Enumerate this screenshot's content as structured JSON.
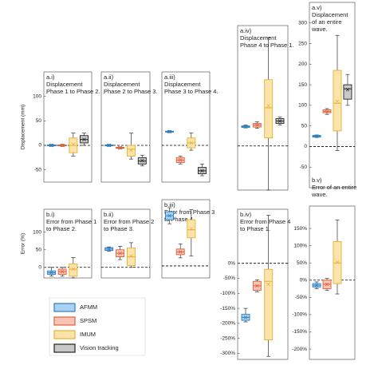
{
  "chart_data": {
    "type": "box",
    "series": [
      {
        "name": "AFMM",
        "color": "#a9d1f2",
        "stroke": "#2a7fc4"
      },
      {
        "name": "SPSM",
        "color": "#f7c4b6",
        "stroke": "#e0603c"
      },
      {
        "name": "IMUM",
        "color": "#fbe4ac",
        "stroke": "#e8b030"
      },
      {
        "name": "Vision tracking",
        "color": "#c8c8c8",
        "stroke": "#222222"
      }
    ],
    "panels": [
      {
        "title": [
          "a.i)",
          "Displacement",
          "Phase 1 to Phase 2."
        ],
        "ylabel": "Displacement (mm)",
        "ylim": [
          -75,
          150
        ],
        "yticks": [
          -50,
          0,
          50,
          100
        ],
        "boxes": [
          {
            "low": -2,
            "q1": -1,
            "median": 0,
            "q3": 1,
            "high": 2,
            "mean": 0
          },
          {
            "low": -2,
            "q1": -1,
            "median": 0,
            "q3": 1,
            "high": 2,
            "mean": 0
          },
          {
            "low": -22,
            "q1": -15,
            "median": 0,
            "q3": 15,
            "high": 25,
            "mean": 2
          },
          {
            "low": 0,
            "q1": 5,
            "median": 12,
            "q3": 20,
            "high": 25,
            "mean": 12
          }
        ]
      },
      {
        "title": [
          "a.ii)",
          "Displacement",
          "Phase 2 to Phase 3."
        ],
        "ylim": [
          -75,
          150
        ],
        "boxes": [
          {
            "low": -2,
            "q1": -1,
            "median": 0,
            "q3": 1,
            "high": 2,
            "mean": 0
          },
          {
            "low": -7,
            "q1": -6,
            "median": -5,
            "q3": -4,
            "high": -3,
            "mean": -5
          },
          {
            "low": -28,
            "q1": -22,
            "median": -8,
            "q3": 0,
            "high": 25,
            "mean": -10
          },
          {
            "low": -42,
            "q1": -38,
            "median": -32,
            "q3": -25,
            "high": -20,
            "mean": -31
          }
        ]
      },
      {
        "title": [
          "a.iii)",
          "Displacement",
          "Phase 3 to Phase 4."
        ],
        "ylim": [
          -75,
          150
        ],
        "boxes": [
          {
            "low": 26,
            "q1": 27,
            "median": 28,
            "q3": 29,
            "high": 30,
            "mean": 28
          },
          {
            "low": -38,
            "q1": -35,
            "median": -30,
            "q3": -25,
            "high": -22,
            "mean": -30
          },
          {
            "low": -10,
            "q1": -5,
            "median": 5,
            "q3": 15,
            "high": 25,
            "mean": 5
          },
          {
            "low": -62,
            "q1": -58,
            "median": -52,
            "q3": -45,
            "high": -38,
            "mean": -52
          }
        ]
      },
      {
        "title": [
          "a.iv)",
          "Displacement",
          "Phase 4 to Phase 1."
        ],
        "ylim": [
          -110,
          300
        ],
        "boxes": [
          {
            "low": 45,
            "q1": 46,
            "median": 48,
            "q3": 50,
            "high": 52,
            "mean": 48
          },
          {
            "low": 44,
            "q1": 47,
            "median": 52,
            "q3": 56,
            "high": 60,
            "mean": 52
          },
          {
            "low": -110,
            "q1": 20,
            "median": 95,
            "q3": 165,
            "high": 270,
            "mean": 100
          },
          {
            "low": 52,
            "q1": 56,
            "median": 62,
            "q3": 68,
            "high": 72,
            "mean": 62
          }
        ]
      },
      {
        "title": [
          "a.v)",
          "Displacement",
          "of an entire",
          "wave."
        ],
        "ylim": [
          -100,
          350
        ],
        "yticks": [
          -50,
          0,
          50,
          100,
          150,
          200,
          250,
          300
        ],
        "boxes": [
          {
            "low": 22,
            "q1": 23,
            "median": 25,
            "q3": 27,
            "high": 28,
            "mean": 25
          },
          {
            "low": 78,
            "q1": 82,
            "median": 85,
            "q3": 89,
            "high": 92,
            "mean": 85
          },
          {
            "low": -10,
            "q1": 38,
            "median": 105,
            "q3": 185,
            "high": 270,
            "mean": 110
          },
          {
            "low": 100,
            "q1": 115,
            "median": 140,
            "q3": 150,
            "high": 175,
            "mean": 138
          }
        ]
      },
      {
        "title": [
          "b.i)",
          "Error from Phase 1",
          "to Phase 2."
        ],
        "ylabel": "Error (%)",
        "ylim": [
          -30,
          165
        ],
        "yticks": [
          0,
          50,
          100
        ],
        "boxes": [
          {
            "low": -25,
            "q1": -20,
            "median": -15,
            "q3": -10,
            "high": 0,
            "mean": -15
          },
          {
            "low": -25,
            "q1": -20,
            "median": -12,
            "q3": -5,
            "high": 0,
            "mean": -12
          },
          {
            "low": -30,
            "q1": -25,
            "median": -5,
            "q3": 10,
            "high": 28,
            "mean": -5
          }
        ]
      },
      {
        "title": [
          "b.ii)",
          "Error from Phase 2",
          "to Phase 3."
        ],
        "ylim": [
          -30,
          165
        ],
        "boxes": [
          {
            "low": 46,
            "q1": 48,
            "median": 52,
            "q3": 56,
            "high": 58,
            "mean": 52
          },
          {
            "low": 22,
            "q1": 30,
            "median": 40,
            "q3": 50,
            "high": 60,
            "mean": 40
          },
          {
            "low": 0,
            "q1": 5,
            "median": 30,
            "q3": 55,
            "high": 70,
            "mean": 32
          }
        ]
      },
      {
        "title": [
          "b.iii)",
          "Error from Phase 3",
          "to Phase 4."
        ],
        "ylim": [
          -30,
          165
        ],
        "boxes": [
          {
            "low": 105,
            "q1": 115,
            "median": 125,
            "q3": 135,
            "high": 145,
            "mean": 125
          },
          {
            "low": 20,
            "q1": 28,
            "median": 35,
            "q3": 42,
            "high": 55,
            "mean": 35
          },
          {
            "low": 25,
            "q1": 70,
            "median": 90,
            "q3": 115,
            "high": 140,
            "mean": 92
          }
        ]
      },
      {
        "title": [
          "b.iv)",
          "Error from Phase 4",
          "to Phase 1."
        ],
        "ylim": [
          -320,
          180
        ],
        "yticks": [
          {
            "value": 0,
            "label": "0%"
          },
          {
            "value": -50,
            "label": "-50%"
          },
          {
            "value": -100,
            "label": "-100%"
          },
          {
            "value": -150,
            "label": "-150%"
          },
          {
            "value": -200,
            "label": "-200%"
          },
          {
            "value": -250,
            "label": "-250%"
          },
          {
            "value": -300,
            "label": "-300%"
          }
        ],
        "boxes": [
          {
            "low": -195,
            "q1": -190,
            "median": -180,
            "q3": -170,
            "high": -150,
            "mean": -180
          },
          {
            "low": -95,
            "q1": -90,
            "median": -75,
            "q3": -60,
            "high": -55,
            "mean": -75
          },
          {
            "low": -310,
            "q1": -255,
            "median": -60,
            "q3": -20,
            "high": 160,
            "mean": -70
          }
        ]
      },
      {
        "title": [
          "b.v)",
          "Error of an entire",
          "wave."
        ],
        "ylim": [
          -230,
          215
        ],
        "yticks": [
          {
            "value": -200,
            "label": "-200%"
          },
          {
            "value": -150,
            "label": "-150%"
          },
          {
            "value": -100,
            "label": "-100%"
          },
          {
            "value": -50,
            "label": "-50%"
          },
          {
            "value": 0,
            "label": "0%"
          },
          {
            "value": 50,
            "label": "50%"
          },
          {
            "value": 100,
            "label": "100%"
          },
          {
            "value": 150,
            "label": "150%"
          }
        ],
        "boxes": [
          {
            "low": -25,
            "q1": -20,
            "median": -15,
            "q3": -10,
            "high": -5,
            "mean": -15
          },
          {
            "low": -30,
            "q1": -25,
            "median": -12,
            "q3": 0,
            "high": 5,
            "mean": -12
          },
          {
            "low": -40,
            "q1": -10,
            "median": 50,
            "q3": 112,
            "high": 175,
            "mean": 52
          }
        ]
      }
    ]
  }
}
